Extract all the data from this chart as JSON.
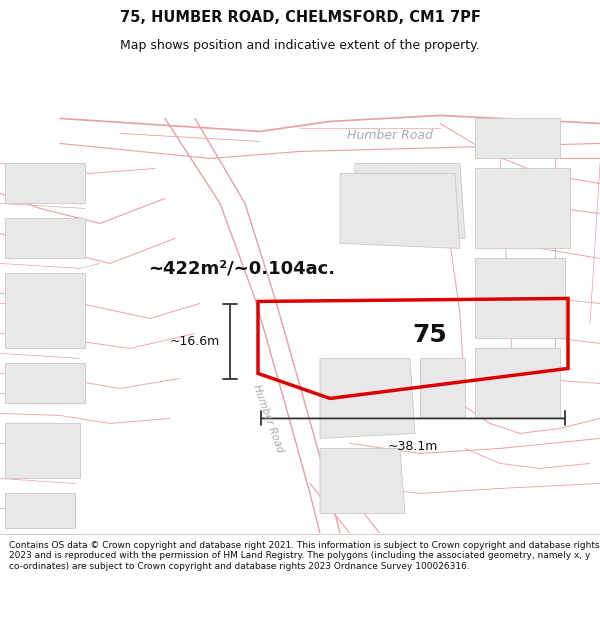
{
  "title": "75, HUMBER ROAD, CHELMSFORD, CM1 7PF",
  "subtitle": "Map shows position and indicative extent of the property.",
  "footer": "Contains OS data © Crown copyright and database right 2021. This information is subject to Crown copyright and database rights 2023 and is reproduced with the permission of HM Land Registry. The polygons (including the associated geometry, namely x, y co-ordinates) are subject to Crown copyright and database rights 2023 Ordnance Survey 100026316.",
  "background_color": "#ffffff",
  "area_label": "~422m²/~0.104ac.",
  "property_number": "75",
  "dim_width": "~38.1m",
  "dim_height": "~16.6m",
  "road_label_top": "Humber Road",
  "road_label_left": "Humber Road",
  "red_color": "#dd0000",
  "line_color": "#333333",
  "road_line_color": "#e8a0a0",
  "building_fill": "#e8e8e8",
  "building_edge": "#c8c8c8",
  "map_bg": "#ffffff",
  "title_fontsize": 10.5,
  "subtitle_fontsize": 9,
  "footer_fontsize": 6.5
}
